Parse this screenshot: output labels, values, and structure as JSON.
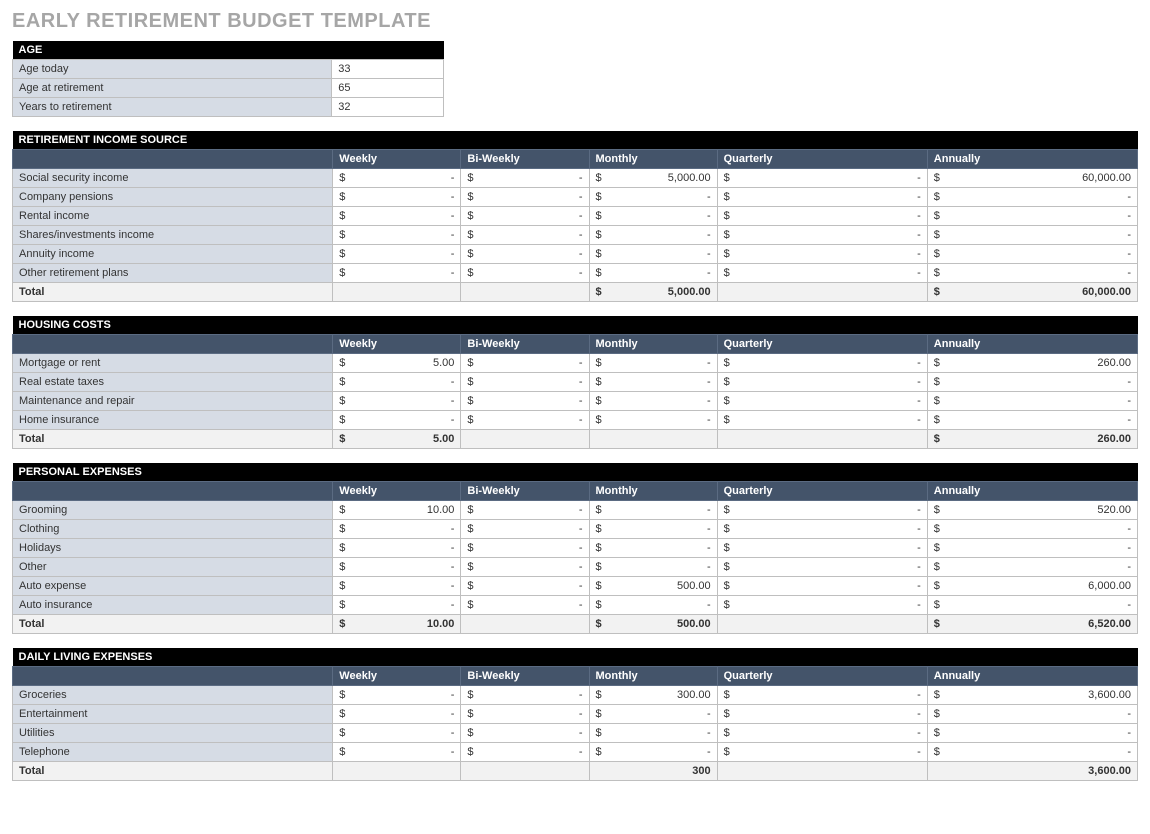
{
  "title": "EARLY RETIREMENT BUDGET TEMPLATE",
  "columns": [
    "Weekly",
    "Bi-Weekly",
    "Monthly",
    "Quarterly",
    "Annually"
  ],
  "currency": "$",
  "dash": "-",
  "age": {
    "header": "AGE",
    "rows": [
      {
        "label": "Age today",
        "value": "33"
      },
      {
        "label": "Age at retirement",
        "value": "65"
      },
      {
        "label": "Years to retirement",
        "value": "32"
      }
    ]
  },
  "sections": [
    {
      "title": "RETIREMENT INCOME SOURCE",
      "rows": [
        {
          "label": "Social security income",
          "weekly": "-",
          "biweekly": "-",
          "monthly": "5,000.00",
          "quarterly": "-",
          "annually": "60,000.00"
        },
        {
          "label": "Company pensions",
          "weekly": "-",
          "biweekly": "-",
          "monthly": "-",
          "quarterly": "-",
          "annually": "-"
        },
        {
          "label": "Rental income",
          "weekly": "-",
          "biweekly": "-",
          "monthly": "-",
          "quarterly": "-",
          "annually": "-"
        },
        {
          "label": "Shares/investments income",
          "weekly": "-",
          "biweekly": "-",
          "monthly": "-",
          "quarterly": "-",
          "annually": "-"
        },
        {
          "label": "Annuity income",
          "weekly": "-",
          "biweekly": "-",
          "monthly": "-",
          "quarterly": "-",
          "annually": "-"
        },
        {
          "label": "Other retirement plans",
          "weekly": "-",
          "biweekly": "-",
          "monthly": "-",
          "quarterly": "-",
          "annually": "-"
        }
      ],
      "total": {
        "label": "Total",
        "weekly": "",
        "biweekly": "",
        "monthly": "5,000.00",
        "quarterly": "",
        "annually": "60,000.00",
        "dollar_weekly": false,
        "dollar_monthly": true,
        "dollar_annually": true
      }
    },
    {
      "title": "HOUSING COSTS",
      "rows": [
        {
          "label": "Mortgage or rent",
          "weekly": "5.00",
          "biweekly": "-",
          "monthly": "-",
          "quarterly": "-",
          "annually": "260.00"
        },
        {
          "label": "Real estate taxes",
          "weekly": "-",
          "biweekly": "-",
          "monthly": "-",
          "quarterly": "-",
          "annually": "-"
        },
        {
          "label": "Maintenance and repair",
          "weekly": "-",
          "biweekly": "-",
          "monthly": "-",
          "quarterly": "-",
          "annually": "-"
        },
        {
          "label": "Home insurance",
          "weekly": "-",
          "biweekly": "-",
          "monthly": "-",
          "quarterly": "-",
          "annually": "-"
        }
      ],
      "total": {
        "label": "Total",
        "weekly": "5.00",
        "biweekly": "",
        "monthly": "",
        "quarterly": "",
        "annually": "260.00",
        "dollar_weekly": true,
        "dollar_annually": true
      }
    },
    {
      "title": "PERSONAL EXPENSES",
      "rows": [
        {
          "label": "Grooming",
          "weekly": "10.00",
          "biweekly": "-",
          "monthly": "-",
          "quarterly": "-",
          "annually": "520.00"
        },
        {
          "label": "Clothing",
          "weekly": "-",
          "biweekly": "-",
          "monthly": "-",
          "quarterly": "-",
          "annually": "-"
        },
        {
          "label": "Holidays",
          "weekly": "-",
          "biweekly": "-",
          "monthly": "-",
          "quarterly": "-",
          "annually": "-"
        },
        {
          "label": "Other",
          "weekly": "-",
          "biweekly": "-",
          "monthly": "-",
          "quarterly": "-",
          "annually": "-"
        },
        {
          "label": "Auto expense",
          "weekly": "-",
          "biweekly": "-",
          "monthly": "500.00",
          "quarterly": "-",
          "annually": "6,000.00"
        },
        {
          "label": "Auto insurance",
          "weekly": "-",
          "biweekly": "-",
          "monthly": "-",
          "quarterly": "-",
          "annually": "-"
        }
      ],
      "total": {
        "label": "Total",
        "weekly": "10.00",
        "biweekly": "",
        "monthly": "500.00",
        "quarterly": "",
        "annually": "6,520.00",
        "dollar_weekly": true,
        "dollar_monthly": true,
        "dollar_annually": true
      }
    },
    {
      "title": "DAILY LIVING EXPENSES",
      "rows": [
        {
          "label": "Groceries",
          "weekly": "-",
          "biweekly": "-",
          "monthly": "300.00",
          "quarterly": "-",
          "annually": "3,600.00"
        },
        {
          "label": "Entertainment",
          "weekly": "-",
          "biweekly": "-",
          "monthly": "-",
          "quarterly": "-",
          "annually": "-"
        },
        {
          "label": "Utilities",
          "weekly": "-",
          "biweekly": "-",
          "monthly": "-",
          "quarterly": "-",
          "annually": "-"
        },
        {
          "label": "Telephone",
          "weekly": "-",
          "biweekly": "-",
          "monthly": "-",
          "quarterly": "-",
          "annually": "-"
        }
      ],
      "total": {
        "label": "Total",
        "weekly": "",
        "biweekly": "",
        "monthly": "300",
        "quarterly": "",
        "annually": "3,600.00",
        "dollar_monthly": false,
        "dollar_annually": false
      }
    }
  ]
}
